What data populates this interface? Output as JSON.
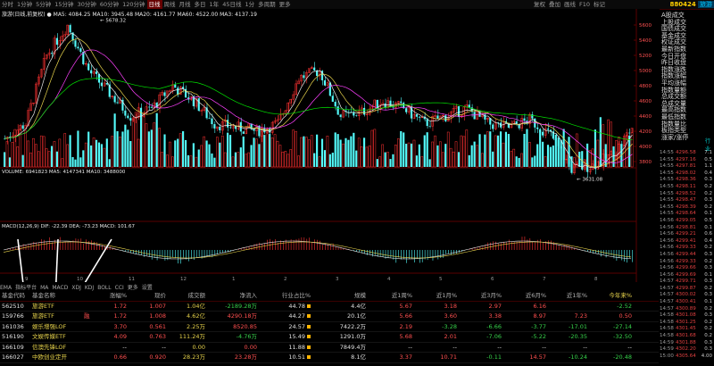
{
  "toolbar": {
    "periods": [
      "分时",
      "1分钟",
      "5分钟",
      "15分钟",
      "30分钟",
      "60分钟",
      "120分钟",
      "日线",
      "周线",
      "月线",
      "多日",
      "1年",
      "45日线",
      "1分",
      "多周期",
      "更多"
    ],
    "active_period": "日线",
    "right_items": [
      "复权",
      "叠加",
      "画线",
      "F10",
      "标记"
    ],
    "code": "880424",
    "name": "旅游"
  },
  "indicator_lines": {
    "main": "旅游(日线,前复权) ● MA5: 4084.25 MA10: 3945.48 MA20: 4161.77 MA60: 4522.00 MA3: 4137.19",
    "volume": "VOLUME: 6941823 MA5: 4147341 MA10: 3488000",
    "macd": "MACD(12,26,9) DIF: -22.39 DEA: -73.23 MACD: 101.67"
  },
  "chart_labels": {
    "high_mark": "5678.32",
    "low_mark": "3631.08"
  },
  "price_axis": [
    "5600",
    "5400",
    "5200",
    "5000",
    "4800",
    "4600",
    "4400",
    "4200",
    "4000",
    "3800"
  ],
  "x_months": [
    "9",
    "10",
    "11",
    "12",
    "1",
    "2",
    "3",
    "4",
    "5",
    "6",
    "7",
    "8"
  ],
  "side_menu": [
    "A股成交",
    "上股成交",
    "国债成交",
    "基金成交",
    "权证成交",
    "最新指数",
    "今日开盘",
    "昨日收盘",
    "指数涨跌",
    "指数涨幅",
    "平均涨幅",
    "指数量额",
    "总成交额",
    "总成交量",
    "最高指数",
    "最低指数",
    "指数量比",
    "板指类型",
    "涨家/涨停"
  ],
  "side_extra": {
    "label1": "行业",
    "label2": "涨跌"
  },
  "quote_ticks": [
    {
      "t": "14:55",
      "p": "4296.58",
      "v": "7.1"
    },
    {
      "t": "14:55",
      "p": "4297.16",
      "v": "0.5"
    },
    {
      "t": "14:55",
      "p": "4297.81",
      "v": "1.1"
    },
    {
      "t": "14:55",
      "p": "4298.02",
      "v": "0.4"
    },
    {
      "t": "14:55",
      "p": "4298.36",
      "v": "0.3"
    },
    {
      "t": "14:55",
      "p": "4298.11",
      "v": "0.2"
    },
    {
      "t": "14:55",
      "p": "4298.52",
      "v": "0.2"
    },
    {
      "t": "14:55",
      "p": "4298.47",
      "v": "0.3"
    },
    {
      "t": "14:55",
      "p": "4298.39",
      "v": "0.2"
    },
    {
      "t": "14:55",
      "p": "4298.64",
      "v": "0.1"
    },
    {
      "t": "14:56",
      "p": "4299.05",
      "v": "0.5"
    },
    {
      "t": "14:56",
      "p": "4298.81",
      "v": "0.1"
    },
    {
      "t": "14:56",
      "p": "4299.21",
      "v": "0.6"
    },
    {
      "t": "14:56",
      "p": "4299.41",
      "v": "0.4"
    },
    {
      "t": "14:56",
      "p": "4299.33",
      "v": "0.2"
    },
    {
      "t": "14:56",
      "p": "4299.44",
      "v": "0.3"
    },
    {
      "t": "14:56",
      "p": "4299.33",
      "v": "0.2"
    },
    {
      "t": "14:56",
      "p": "4299.66",
      "v": "0.3"
    },
    {
      "t": "14:56",
      "p": "4299.69",
      "v": "0.1"
    },
    {
      "t": "14:57",
      "p": "4299.71",
      "v": "0.3"
    },
    {
      "t": "14:57",
      "p": "4299.87",
      "v": "0.2"
    },
    {
      "t": "14:57",
      "p": "4300.02",
      "v": "0.3"
    },
    {
      "t": "14:57",
      "p": "4300.41",
      "v": "0.1"
    },
    {
      "t": "14:57",
      "p": "4300.89",
      "v": "0.2"
    },
    {
      "t": "14:58",
      "p": "4301.08",
      "v": "0.3"
    },
    {
      "t": "14:58",
      "p": "4301.25",
      "v": "0.2"
    },
    {
      "t": "14:58",
      "p": "4301.45",
      "v": "0.2"
    },
    {
      "t": "14:58",
      "p": "4301.68",
      "v": "0.2"
    },
    {
      "t": "14:59",
      "p": "4301.88",
      "v": "0.3"
    },
    {
      "t": "14:59",
      "p": "4302.20",
      "v": "0.3"
    },
    {
      "t": "15:00",
      "p": "4305.64",
      "v": "4.00"
    }
  ],
  "bottom_tabs": [
    "EMA",
    "指标平台",
    "MA",
    "MACD",
    "XDJ",
    "KDJ",
    "BOLL",
    "CCI",
    "更多",
    "设置"
  ],
  "table": {
    "headers": [
      "基金代码",
      "基金名称",
      "涨幅%",
      "现价",
      "成交额",
      "净流入",
      "行业占比%",
      "规模",
      "近1周%",
      "近1月%",
      "近3月%",
      "近6月%",
      "近1年%",
      "今年来%"
    ],
    "rows": [
      {
        "code": "562510",
        "name": "旅游ETF",
        "flag": "",
        "chg": "1.72",
        "price": "1.007",
        "amount": "1.04亿",
        "inflow": "-2189.28万",
        "pct": "44.78",
        "scale": "4.4亿",
        "w1": "5.67",
        "m1": "3.18",
        "m3": "2.97",
        "m6": "6.16",
        "y1": "",
        "ytd": "-2.52"
      },
      {
        "code": "159766",
        "name": "旅游ETF",
        "flag": "融",
        "chg": "1.72",
        "price": "1.008",
        "amount": "4.62亿",
        "inflow": "4290.18万",
        "pct": "44.27",
        "scale": "20.1亿",
        "w1": "5.66",
        "m1": "3.60",
        "m3": "3.38",
        "m6": "8.97",
        "y1": "7.23",
        "ytd": "0.50"
      },
      {
        "code": "161036",
        "name": "娱乐增强LOF",
        "flag": "",
        "chg": "3.70",
        "price": "0.561",
        "amount": "2.25万",
        "inflow": "8520.85",
        "pct": "24.57",
        "scale": "7422.2万",
        "w1": "2.19",
        "m1": "-3.28",
        "m3": "-6.66",
        "m6": "-3.77",
        "y1": "-17.01",
        "ytd": "-27.14"
      },
      {
        "code": "516190",
        "name": "文娱传媒ETF",
        "flag": "",
        "chg": "4.09",
        "price": "0.763",
        "amount": "111.24万",
        "inflow": "-4.76万",
        "pct": "15.49",
        "scale": "1291.0万",
        "w1": "5.68",
        "m1": "2.01",
        "m3": "-7.06",
        "m6": "-5.22",
        "y1": "-20.35",
        "ytd": "-32.50"
      },
      {
        "code": "166109",
        "name": "信澳先锋LOF",
        "flag": "",
        "chg": "--",
        "price": "--",
        "amount": "0.00",
        "inflow": "0.00",
        "pct": "11.88",
        "scale": "7849.4万",
        "w1": "--",
        "m1": "--",
        "m3": "--",
        "m6": "--",
        "y1": "--",
        "ytd": "--"
      },
      {
        "code": "166027",
        "name": "中欧创业定开",
        "flag": "",
        "chg": "0.66",
        "price": "0.920",
        "amount": "28.23万",
        "inflow": "23.28万",
        "pct": "10.51",
        "scale": "8.1亿",
        "w1": "3.37",
        "m1": "10.71",
        "m3": "-0.11",
        "m6": "14.57",
        "y1": "-10.24",
        "ytd": "-20.48"
      }
    ]
  }
}
